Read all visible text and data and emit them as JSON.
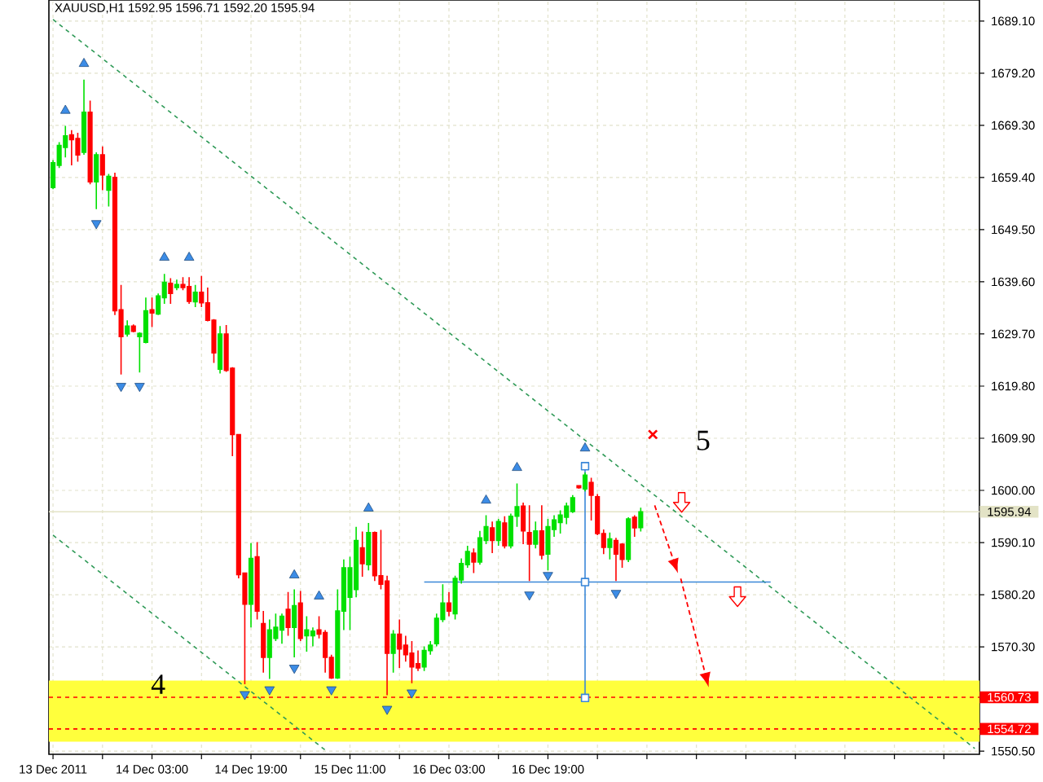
{
  "chart_data": {
    "type": "candlestick",
    "title": "XAUUSD,H1 1592.95 1596.71 1592.20 1595.94",
    "x": [
      "2011-12-13T11:00",
      "2011-12-13T12:00",
      "2011-12-13T13:00",
      "2011-12-13T14:00",
      "2011-12-13T15:00",
      "2011-12-13T16:00",
      "2011-12-13T17:00",
      "2011-12-13T18:00",
      "2011-12-13T19:00",
      "2011-12-13T20:00",
      "2011-12-13T21:00",
      "2011-12-13T22:00",
      "2011-12-13T23:00",
      "2011-12-14T00:00",
      "2011-12-14T01:00",
      "2011-12-14T02:00",
      "2011-12-14T03:00",
      "2011-12-14T04:00",
      "2011-12-14T05:00",
      "2011-12-14T06:00",
      "2011-12-14T07:00",
      "2011-12-14T08:00",
      "2011-12-14T09:00",
      "2011-12-14T10:00",
      "2011-12-14T11:00",
      "2011-12-14T12:00",
      "2011-12-14T13:00",
      "2011-12-14T14:00",
      "2011-12-14T15:00",
      "2011-12-14T16:00",
      "2011-12-14T17:00",
      "2011-12-14T18:00",
      "2011-12-14T19:00",
      "2011-12-14T20:00",
      "2011-12-14T21:00",
      "2011-12-14T22:00",
      "2011-12-14T23:00",
      "2011-12-15T00:00",
      "2011-12-15T01:00",
      "2011-12-15T02:00",
      "2011-12-15T03:00",
      "2011-12-15T04:00",
      "2011-12-15T05:00",
      "2011-12-15T06:00",
      "2011-12-15T07:00",
      "2011-12-15T08:00",
      "2011-12-15T09:00",
      "2011-12-15T10:00",
      "2011-12-15T11:00",
      "2011-12-15T12:00",
      "2011-12-15T13:00",
      "2011-12-15T14:00",
      "2011-12-15T15:00",
      "2011-12-15T16:00",
      "2011-12-15T17:00",
      "2011-12-15T18:00",
      "2011-12-15T19:00",
      "2011-12-15T20:00",
      "2011-12-15T21:00",
      "2011-12-15T22:00",
      "2011-12-15T23:00",
      "2011-12-16T00:00",
      "2011-12-16T01:00",
      "2011-12-16T02:00",
      "2011-12-16T03:00",
      "2011-12-16T04:00",
      "2011-12-16T05:00",
      "2011-12-16T06:00",
      "2011-12-16T07:00",
      "2011-12-16T08:00",
      "2011-12-16T09:00",
      "2011-12-16T10:00",
      "2011-12-16T11:00",
      "2011-12-16T12:00",
      "2011-12-16T13:00",
      "2011-12-16T14:00",
      "2011-12-16T15:00",
      "2011-12-16T16:00",
      "2011-12-16T17:00",
      "2011-12-16T18:00",
      "2011-12-16T19:00",
      "2011-12-16T20:00",
      "2011-12-16T21:00",
      "2011-12-16T22:00",
      "2011-12-16T23:00",
      "2011-12-17T00:00",
      "2011-12-17T01:00",
      "2011-12-17T02:00",
      "2011-12-17T03:00",
      "2011-12-17T04:00",
      "2011-12-17T05:00",
      "2011-12-17T06:00",
      "2011-12-17T07:00",
      "2011-12-17T08:00",
      "2011-12-17T09:00",
      "2011-12-17T10:00"
    ],
    "ohlc": [
      [
        1657.5,
        1662.7,
        1657.2,
        1662.2
      ],
      [
        1661.7,
        1666.1,
        1661.2,
        1665.5
      ],
      [
        1665.1,
        1669.2,
        1663.2,
        1667.3
      ],
      [
        1667.5,
        1668.4,
        1661.7,
        1666.6
      ],
      [
        1666.8,
        1667.9,
        1662.4,
        1663.7
      ],
      [
        1664.2,
        1678.0,
        1663.7,
        1671.8
      ],
      [
        1671.8,
        1674.0,
        1658.1,
        1658.6
      ],
      [
        1658.6,
        1664.2,
        1653.4,
        1663.7
      ],
      [
        1663.7,
        1665.3,
        1657.0,
        1659.9
      ],
      [
        1657.0,
        1660.1,
        1653.9,
        1659.6
      ],
      [
        1659.4,
        1660.3,
        1633.3,
        1634.1
      ],
      [
        1634.3,
        1639.0,
        1622.0,
        1629.2
      ],
      [
        1629.7,
        1632.3,
        1629.2,
        1631.2
      ],
      [
        1631.2,
        1631.5,
        1630.0,
        1630.2
      ],
      [
        1629.2,
        1630.0,
        1622.4,
        1629.8
      ],
      [
        1628.1,
        1636.6,
        1627.9,
        1634.1
      ],
      [
        1634.3,
        1636.6,
        1631.0,
        1633.7
      ],
      [
        1633.5,
        1637.4,
        1633.3,
        1636.9
      ],
      [
        1636.6,
        1641.1,
        1635.4,
        1639.5
      ],
      [
        1639.3,
        1640.3,
        1635.4,
        1637.4
      ],
      [
        1638.5,
        1640.0,
        1638.0,
        1639.1
      ],
      [
        1639.1,
        1640.5,
        1638.0,
        1638.5
      ],
      [
        1638.7,
        1640.5,
        1635.4,
        1635.9
      ],
      [
        1635.8,
        1639.0,
        1634.8,
        1637.6
      ],
      [
        1637.6,
        1640.7,
        1634.8,
        1635.6
      ],
      [
        1635.6,
        1638.5,
        1632.1,
        1632.3
      ],
      [
        1632.3,
        1632.5,
        1624.2,
        1626.1
      ],
      [
        1623.0,
        1631.2,
        1622.2,
        1629.7
      ],
      [
        1629.7,
        1631.4,
        1622.5,
        1622.8
      ],
      [
        1623.2,
        1623.4,
        1606.5,
        1610.6
      ],
      [
        1610.6,
        1610.6,
        1583.3,
        1584.0
      ],
      [
        1584.3,
        1584.3,
        1563.2,
        1578.4
      ],
      [
        1578.4,
        1590.0,
        1574.0,
        1587.1
      ],
      [
        1587.4,
        1590.2,
        1575.5,
        1577.1
      ],
      [
        1574.7,
        1577.1,
        1565.4,
        1568.3
      ],
      [
        1568.3,
        1575.5,
        1564.2,
        1573.5
      ],
      [
        1571.9,
        1576.6,
        1571.4,
        1574.0
      ],
      [
        1573.5,
        1576.6,
        1570.9,
        1576.1
      ],
      [
        1577.4,
        1580.7,
        1572.4,
        1574.0
      ],
      [
        1574.0,
        1581.2,
        1568.3,
        1578.1
      ],
      [
        1578.6,
        1580.9,
        1571.4,
        1571.9
      ],
      [
        1572.4,
        1576.1,
        1569.4,
        1573.5
      ],
      [
        1572.4,
        1574.0,
        1570.4,
        1573.3
      ],
      [
        1573.5,
        1576.1,
        1571.9,
        1572.7
      ],
      [
        1573.0,
        1573.5,
        1565.4,
        1568.3
      ],
      [
        1568.3,
        1568.8,
        1564.2,
        1564.4
      ],
      [
        1564.4,
        1581.2,
        1564.2,
        1577.1
      ],
      [
        1577.1,
        1586.9,
        1573.5,
        1585.3
      ],
      [
        1579.7,
        1587.4,
        1573.5,
        1585.3
      ],
      [
        1581.2,
        1593.1,
        1579.7,
        1590.5
      ],
      [
        1589.1,
        1592.2,
        1583.6,
        1586.1
      ],
      [
        1585.9,
        1593.8,
        1584.8,
        1592.0
      ],
      [
        1592.0,
        1592.2,
        1582.8,
        1583.8
      ],
      [
        1583.8,
        1592.5,
        1581.2,
        1582.2
      ],
      [
        1582.8,
        1583.8,
        1561.1,
        1569.1
      ],
      [
        1569.1,
        1573.5,
        1565.4,
        1572.7
      ],
      [
        1572.7,
        1575.5,
        1566.3,
        1569.9
      ],
      [
        1570.6,
        1572.4,
        1567.5,
        1568.8
      ],
      [
        1569.1,
        1571.4,
        1563.4,
        1566.5
      ],
      [
        1567.1,
        1569.6,
        1565.7,
        1566.3
      ],
      [
        1566.5,
        1570.4,
        1565.7,
        1569.6
      ],
      [
        1569.6,
        1571.4,
        1568.8,
        1570.6
      ],
      [
        1570.9,
        1576.6,
        1570.4,
        1575.7
      ],
      [
        1575.5,
        1582.2,
        1575.0,
        1578.6
      ],
      [
        1578.6,
        1580.7,
        1576.1,
        1577.1
      ],
      [
        1576.6,
        1583.8,
        1575.5,
        1583.3
      ],
      [
        1583.0,
        1587.1,
        1582.3,
        1586.1
      ],
      [
        1585.9,
        1589.5,
        1585.3,
        1588.4
      ],
      [
        1588.1,
        1589.0,
        1584.3,
        1586.4
      ],
      [
        1586.4,
        1592.3,
        1585.9,
        1591.0
      ],
      [
        1590.5,
        1595.3,
        1589.8,
        1593.1
      ],
      [
        1592.9,
        1594.1,
        1588.1,
        1590.5
      ],
      [
        1590.5,
        1594.6,
        1589.5,
        1594.1
      ],
      [
        1593.8,
        1595.1,
        1589.0,
        1589.5
      ],
      [
        1589.5,
        1595.6,
        1589.0,
        1595.1
      ],
      [
        1595.1,
        1601.3,
        1593.1,
        1596.9
      ],
      [
        1597.0,
        1597.7,
        1589.8,
        1592.3
      ],
      [
        1592.0,
        1597.2,
        1582.8,
        1589.8
      ],
      [
        1589.8,
        1594.1,
        1589.0,
        1592.3
      ],
      [
        1592.3,
        1597.2,
        1586.9,
        1587.7
      ],
      [
        1587.9,
        1594.6,
        1584.8,
        1593.1
      ],
      [
        1592.6,
        1595.3,
        1591.2,
        1594.4
      ],
      [
        1593.9,
        1596.2,
        1591.8,
        1595.3
      ],
      [
        1594.9,
        1597.7,
        1593.6,
        1597.0
      ],
      [
        1596.0,
        1599.1,
        1595.7,
        1598.6
      ],
      [
        1600.9,
        1601.0,
        1600.3,
        1600.5
      ],
      [
        1600.3,
        1603.4,
        1599.8,
        1602.9
      ],
      [
        1601.5,
        1602.4,
        1594.3,
        1599.1
      ],
      [
        1598.8,
        1599.3,
        1591.5,
        1591.8
      ],
      [
        1591.8,
        1592.6,
        1587.9,
        1589.2
      ],
      [
        1589.2,
        1592.0,
        1586.9,
        1590.8
      ],
      [
        1590.5,
        1591.0,
        1582.8,
        1587.9
      ],
      [
        1589.8,
        1590.0,
        1585.3,
        1586.9
      ],
      [
        1586.9,
        1594.9,
        1586.4,
        1594.6
      ],
      [
        1594.9,
        1595.3,
        1591.2,
        1592.9
      ],
      [
        1592.95,
        1596.71,
        1592.2,
        1595.94
      ]
    ],
    "colors": [
      "#00e000",
      "#00e000",
      "#00e000",
      "#ff0000",
      "#ff0000",
      "#00e000",
      "#ff0000",
      "#00e000",
      "#ff0000",
      "#00e000",
      "#ff0000",
      "#ff0000",
      "#00e000",
      "#ff0000",
      "#00e000",
      "#00e000",
      "#ff0000",
      "#00e000",
      "#00e000",
      "#ff0000",
      "#00e000",
      "#ff0000",
      "#ff0000",
      "#00e000",
      "#ff0000",
      "#ff0000",
      "#ff0000",
      "#00e000",
      "#ff0000",
      "#ff0000",
      "#ff0000",
      "#ff0000",
      "#00e000",
      "#ff0000",
      "#ff0000",
      "#00e000",
      "#00e000",
      "#00e000",
      "#ff0000",
      "#00e000",
      "#ff0000",
      "#00e000",
      "#00e000",
      "#ff0000",
      "#ff0000",
      "#ff0000",
      "#00e000",
      "#00e000",
      "#00e000",
      "#00e000",
      "#ff0000",
      "#00e000",
      "#ff0000",
      "#ff0000",
      "#ff0000",
      "#00e000",
      "#ff0000",
      "#ff0000",
      "#ff0000",
      "#ff0000",
      "#00e000",
      "#00e000",
      "#00e000",
      "#00e000",
      "#ff0000",
      "#00e000",
      "#00e000",
      "#00e000",
      "#ff0000",
      "#00e000",
      "#00e000",
      "#ff0000",
      "#00e000",
      "#ff0000",
      "#00e000",
      "#00e000",
      "#ff0000",
      "#ff0000",
      "#00e000",
      "#ff0000",
      "#00e000",
      "#00e000",
      "#00e000",
      "#00e000",
      "#00e000",
      "#ff0000",
      "#00e000",
      "#ff0000",
      "#ff0000",
      "#ff0000",
      "#00e000",
      "#ff0000",
      "#ff0000",
      "#00e000",
      "#ff0000",
      "#00e000"
    ],
    "series": [
      {
        "type": "scatter",
        "marker": "triangle",
        "color": "#3c8ce6",
        "x": [
          "2011-12-13T13:00",
          "2011-12-13T16:00",
          "2011-12-14T05:00",
          "2011-12-14T09:00",
          "2011-12-15T02:00",
          "2011-12-15T06:00",
          "2011-12-15T14:00",
          "2011-12-16T09:00",
          "2011-12-16T14:00",
          "2011-12-17T01:00"
        ],
        "values": [
          1672.1,
          1681.0,
          1644.2,
          1644.2,
          1583.9,
          1579.9,
          1596.6,
          1598.1,
          1604.3,
          1608.0
        ]
      },
      {
        "type": "scatter",
        "marker": "triangle",
        "color": "#3c8ce6",
        "x": [
          "2011-12-13T18:00",
          "2011-12-13T22:00",
          "2011-12-14T01:00",
          "2011-12-14T18:00",
          "2011-12-14T22:00",
          "2011-12-15T02:00",
          "2011-12-15T08:00",
          "2011-12-15T17:00",
          "2011-12-15T21:00",
          "2011-12-16T16:00",
          "2011-12-16T19:00",
          "2011-12-17T06:00"
        ],
        "values": [
          1650.7,
          1619.8,
          1619.8,
          1561.3,
          1562.2,
          1566.3,
          1562.2,
          1558.5,
          1561.6,
          1580.2,
          1583.9,
          1580.5
        ]
      },
      {
        "type": "line",
        "line_style": "dashed",
        "color": "#2f9a57",
        "x": [
          "2011-12-13T11:00",
          "2011-12-19T16:00"
        ],
        "values": [
          1689.4,
          1551.0
        ]
      },
      {
        "type": "line",
        "line_style": "dashed",
        "color": "#2f9a57",
        "x": [
          "2011-12-13T11:00",
          "2011-12-15T07:00"
        ],
        "values": [
          1591.5,
          1550.7
        ]
      },
      {
        "type": "line",
        "color": "#3a87d8",
        "x": [
          "2011-12-15T23:00",
          "2011-12-18T07:00"
        ],
        "values": [
          1582.6,
          1582.6
        ]
      },
      {
        "type": "line",
        "color": "#3a87d8",
        "marker": "square",
        "x": [
          "2011-12-17T01:00",
          "2011-12-17T01:00",
          "2011-12-17T01:00"
        ],
        "values": [
          1604.6,
          1582.6,
          1560.6
        ]
      }
    ],
    "xlim": [
      "2011-12-13T10:20",
      "2011-12-19T16:45"
    ],
    "xticks": [
      {
        "value": "2011-12-13T11:00",
        "label": "13 Dec 2011"
      },
      {
        "value": "2011-12-13T19:00",
        "label": null
      },
      {
        "value": "2011-12-14T03:00",
        "label": "14 Dec 03:00"
      },
      {
        "value": "2011-12-14T11:00",
        "label": null
      },
      {
        "value": "2011-12-14T19:00",
        "label": "14 Dec 19:00"
      },
      {
        "value": "2011-12-15T03:00",
        "label": null
      },
      {
        "value": "2011-12-15T11:00",
        "label": "15 Dec 11:00"
      },
      {
        "value": "2011-12-15T19:00",
        "label": null
      },
      {
        "value": "2011-12-16T03:00",
        "label": "16 Dec 03:00"
      },
      {
        "value": "2011-12-16T11:00",
        "label": null
      },
      {
        "value": "2011-12-16T19:00",
        "label": "16 Dec 19:00"
      },
      {
        "value": "2011-12-17T03:00",
        "label": null
      },
      {
        "value": "2011-12-17T11:00",
        "label": null
      },
      {
        "value": "2011-12-17T19:00",
        "label": null
      },
      {
        "value": "2011-12-18T03:00",
        "label": null
      },
      {
        "value": "2011-12-18T11:00",
        "label": null
      },
      {
        "value": "2011-12-18T19:00",
        "label": null
      },
      {
        "value": "2011-12-19T03:00",
        "label": null
      },
      {
        "value": "2011-12-19T11:00",
        "label": null
      }
    ],
    "ylim": [
      1549.9,
      1693.1
    ],
    "yticks": [
      {
        "value": 1550.5,
        "label": "1550.50"
      },
      {
        "value": 1560.4,
        "label": null
      },
      {
        "value": 1570.3,
        "label": "1570.30"
      },
      {
        "value": 1580.2,
        "label": "1580.20"
      },
      {
        "value": 1590.1,
        "label": "1590.10"
      },
      {
        "value": 1600.0,
        "label": "1600.00"
      },
      {
        "value": 1609.9,
        "label": "1609.90"
      },
      {
        "value": 1619.8,
        "label": "1619.80"
      },
      {
        "value": 1629.7,
        "label": "1629.70"
      },
      {
        "value": 1639.6,
        "label": "1639.60"
      },
      {
        "value": 1649.5,
        "label": "1649.50"
      },
      {
        "value": 1659.4,
        "label": "1659.40"
      },
      {
        "value": 1669.3,
        "label": "1669.30"
      },
      {
        "value": 1679.2,
        "label": "1679.20"
      },
      {
        "value": 1689.1,
        "label": "1689.10"
      }
    ],
    "grid": true,
    "ref_lines": [
      {
        "axis": "y",
        "value": 1595.94,
        "label": "1595.94",
        "color": "#e3e3c6",
        "line_style": "solid"
      },
      {
        "axis": "y",
        "value": 1560.73,
        "label": "1560.73",
        "color": "#ff0000",
        "line_style": "dashed"
      },
      {
        "axis": "y",
        "value": 1554.72,
        "label": "1554.72",
        "color": "#ff0000",
        "line_style": "dashed"
      }
    ],
    "bands": [
      {
        "axis": "y",
        "from": 1552.3,
        "to": 1563.9,
        "color": "#ffff3c"
      }
    ],
    "annotations": [
      "5",
      {
        "text": "4",
        "x": "2011-12-14T04:00",
        "y": 1563.2
      }
    ]
  }
}
